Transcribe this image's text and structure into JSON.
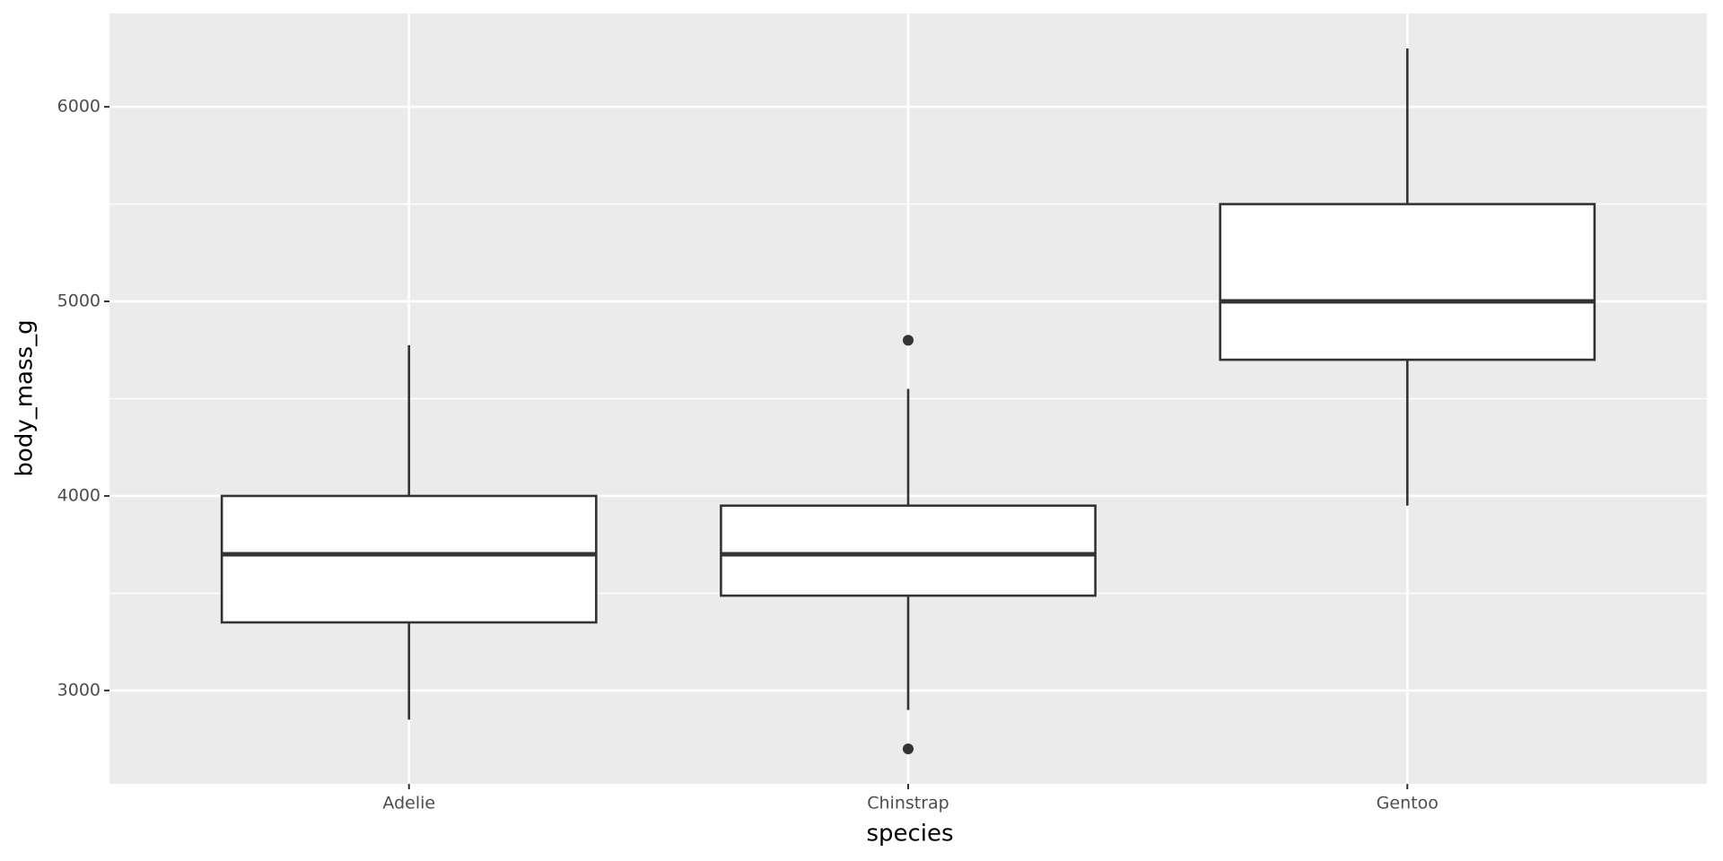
{
  "chart_data": {
    "type": "box",
    "x_label": "species",
    "y_label": "body_mass_g",
    "categories": [
      "Adelie",
      "Chinstrap",
      "Gentoo"
    ],
    "boxes": [
      {
        "min": 2850,
        "q1": 3350,
        "median": 3700,
        "q3": 4000,
        "max": 4775,
        "outliers": []
      },
      {
        "min": 2900,
        "q1": 3487.5,
        "median": 3700,
        "q3": 3950,
        "max": 4550,
        "outliers": [
          2700,
          4800
        ]
      },
      {
        "min": 3950,
        "q1": 4700,
        "median": 5000,
        "q3": 5500,
        "max": 6300,
        "outliers": []
      }
    ],
    "box_fill": "#ffffff",
    "box_stroke": "#333333",
    "ylim": [
      2520,
      6480
    ],
    "yticks": [
      3000,
      4000,
      5000,
      6000
    ],
    "yminor": [
      3500,
      4500,
      5500
    ],
    "grid": true
  }
}
